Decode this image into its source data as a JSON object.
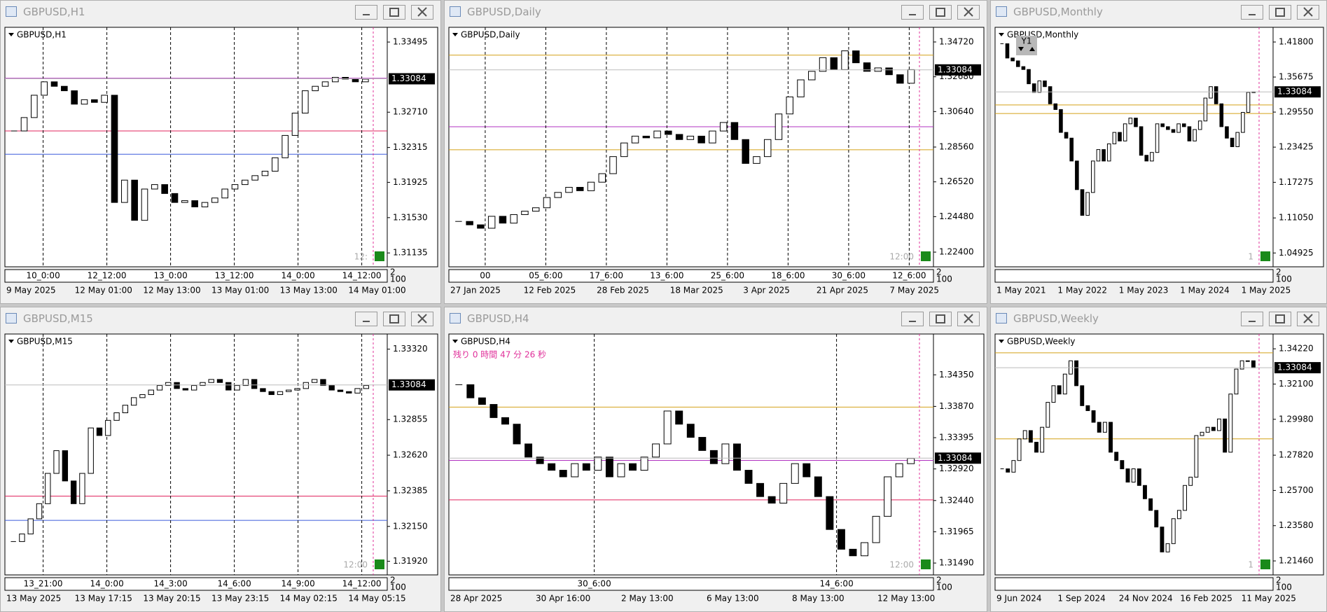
{
  "windows": [
    {
      "title": "GBPUSD,H1",
      "label": "GBPUSD,H1",
      "ylim": [
        1.3098,
        1.3366
      ],
      "yticks": [
        1.33495,
        {
          "value": 1.3271,
          "label": "1.32710"
        },
        1.32315,
        1.31925,
        {
          "value": 1.3153,
          "label": "1.31530"
        },
        1.31135
      ],
      "current_price": 1.33084,
      "axis_labels": [
        "10_0:00",
        "12_12:00",
        "13_0:00",
        "13_12:00",
        "14_0:00",
        "14_12:00"
      ],
      "dates": [
        "9 May 2025",
        "12 May 01:00",
        "12 May 13:00",
        "13 May 01:00",
        "13 May 13:00",
        "14 May 01:00"
      ],
      "corner": [
        "2",
        "100"
      ],
      "note": "12:",
      "levels": [
        {
          "value": 1.325,
          "color": "#e0245e"
        },
        {
          "value": 1.3224,
          "color": "#3b5bdb"
        },
        {
          "value": 1.3309,
          "color": "#b030c0"
        }
      ],
      "closes": [
        1.325,
        1.3265,
        1.329,
        1.3305,
        1.33,
        1.3295,
        1.328,
        1.3285,
        1.3282,
        1.329,
        1.317,
        1.3195,
        1.315,
        1.3185,
        1.319,
        1.318,
        1.317,
        1.3172,
        1.3165,
        1.317,
        1.3175,
        1.3185,
        1.319,
        1.3195,
        1.32,
        1.3205,
        1.322,
        1.3245,
        1.327,
        1.3295,
        1.33,
        1.3305,
        1.331,
        1.3308,
        1.3305,
        1.3308
      ]
    },
    {
      "title": "GBPUSD,Daily",
      "label": "GBPUSD,Daily",
      "ylim": [
        1.2154,
        1.3558
      ],
      "yticks": [
        {
          "value": 1.3472,
          "label": "1.34720"
        },
        {
          "value": 1.3268,
          "label": "1.32680"
        },
        {
          "value": 1.3064,
          "label": "1.30640"
        },
        {
          "value": 1.2856,
          "label": "1.28560"
        },
        {
          "value": 1.2652,
          "label": "1.26520"
        },
        {
          "value": 1.2448,
          "label": "1.24480"
        },
        {
          "value": 1.224,
          "label": "1.22400"
        }
      ],
      "current_price": 1.33084,
      "axis_labels": [
        "00",
        "05_6:00",
        "17_6:00",
        "13_6:00",
        "25_6:00",
        "18_6:00",
        "30_6:00",
        "12_6:00"
      ],
      "dates": [
        "27 Jan 2025",
        "12 Feb 2025",
        "28 Feb 2025",
        "18 Mar 2025",
        "3 Apr 2025",
        "21 Apr 2025",
        "7 May 2025"
      ],
      "corner": [
        "2",
        "100"
      ],
      "note": "12:00",
      "levels": [
        {
          "value": 1.3395,
          "color": "#d4a017"
        },
        {
          "value": 1.284,
          "color": "#d4a017"
        },
        {
          "value": 1.2975,
          "color": "#b030c0"
        }
      ],
      "closes": [
        1.242,
        1.24,
        1.238,
        1.245,
        1.241,
        1.246,
        1.248,
        1.25,
        1.256,
        1.259,
        1.262,
        1.26,
        1.265,
        1.27,
        1.28,
        1.288,
        1.292,
        1.291,
        1.295,
        1.293,
        1.29,
        1.292,
        1.288,
        1.295,
        1.3,
        1.29,
        1.276,
        1.28,
        1.29,
        1.305,
        1.315,
        1.325,
        1.33,
        1.338,
        1.331,
        1.342,
        1.335,
        1.33,
        1.332,
        1.328,
        1.323,
        1.331
      ]
    },
    {
      "title": "GBPUSD,Monthly",
      "label": "GBPUSD,Monthly",
      "ylim": [
        1.0251,
        1.4437
      ],
      "yticks": [
        {
          "value": 1.418,
          "label": "1.41800"
        },
        1.35675,
        {
          "value": 1.2955,
          "label": "1.29550"
        },
        1.23425,
        1.17275,
        {
          "value": 1.1105,
          "label": "1.11050"
        },
        1.04925
      ],
      "current_price": 1.33084,
      "axis_labels": [],
      "dates": [
        "1 May 2021",
        "1 May 2022",
        "1 May 2023",
        "1 May 2024",
        "1 May 2025"
      ],
      "corner": [
        "2",
        "100"
      ],
      "note": "1",
      "button": "Y1",
      "levels": [
        {
          "value": 1.308,
          "color": "#d4a017"
        },
        {
          "value": 1.293,
          "color": "#d4a017"
        }
      ],
      "closes": [
        1.415,
        1.39,
        1.385,
        1.375,
        1.37,
        1.345,
        1.33,
        1.35,
        1.34,
        1.31,
        1.3,
        1.26,
        1.25,
        1.21,
        1.16,
        1.115,
        1.155,
        1.21,
        1.23,
        1.21,
        1.24,
        1.26,
        1.245,
        1.275,
        1.285,
        1.27,
        1.22,
        1.21,
        1.225,
        1.275,
        1.27,
        1.265,
        1.26,
        1.275,
        1.27,
        1.245,
        1.265,
        1.28,
        1.32,
        1.34,
        1.31,
        1.27,
        1.25,
        1.235,
        1.26,
        1.295,
        1.33,
        1.3308
      ]
    },
    {
      "title": "GBPUSD,M15",
      "label": "GBPUSD,M15",
      "ylim": [
        1.3183,
        1.3342
      ],
      "yticks": [
        {
          "value": 1.3332,
          "label": "1.33320"
        },
        1.32855,
        {
          "value": 1.3262,
          "label": "1.32620"
        },
        1.32385,
        {
          "value": 1.3215,
          "label": "1.32150"
        },
        {
          "value": 1.3192,
          "label": "1.31920"
        }
      ],
      "current_price": 1.33084,
      "axis_labels": [
        "13_21:00",
        "14_0:00",
        "14_3:00",
        "14_6:00",
        "14_9:00",
        "14_12:00"
      ],
      "dates": [
        "13 May 2025",
        "13 May 17:15",
        "13 May 20:15",
        "13 May 23:15",
        "14 May 02:15",
        "14 May 05:15"
      ],
      "corner": [
        "2",
        "100"
      ],
      "note": "12:00",
      "levels": [
        {
          "value": 1.3235,
          "color": "#e0245e"
        },
        {
          "value": 1.3219,
          "color": "#3b5bdb"
        }
      ],
      "closes": [
        1.3205,
        1.321,
        1.322,
        1.323,
        1.325,
        1.3265,
        1.3245,
        1.323,
        1.325,
        1.328,
        1.3275,
        1.3285,
        1.329,
        1.3295,
        1.33,
        1.3302,
        1.3305,
        1.3308,
        1.331,
        1.3306,
        1.3305,
        1.3308,
        1.331,
        1.3312,
        1.331,
        1.3305,
        1.3308,
        1.3312,
        1.3306,
        1.3304,
        1.3302,
        1.3304,
        1.3305,
        1.3306,
        1.331,
        1.3312,
        1.3308,
        1.3305,
        1.3304,
        1.3303,
        1.3306,
        1.3308
      ]
    },
    {
      "title": "GBPUSD,H4",
      "label": "GBPUSD,H4",
      "ylim": [
        1.3131,
        1.3497
      ],
      "yticks": [
        {
          "value": 1.3435,
          "label": "1.34350"
        },
        {
          "value": 1.3387,
          "label": "1.33870"
        },
        1.33395,
        {
          "value": 1.3292,
          "label": "1.32920"
        },
        {
          "value": 1.3244,
          "label": "1.32440"
        },
        1.31965,
        {
          "value": 1.3149,
          "label": "1.31490"
        }
      ],
      "current_price": 1.33084,
      "axis_labels": [
        "30_6:00",
        "14_6:00"
      ],
      "dates": [
        "28 Apr 2025",
        "30 Apr 16:00",
        "2 May 13:00",
        "6 May 13:00",
        "8 May 13:00",
        "12 May 13:00"
      ],
      "corner": [
        "2",
        "100"
      ],
      "note": "12:00",
      "countdown": "残り 0 時間 47 分 26 秒",
      "levels": [
        {
          "value": 1.3386,
          "color": "#d4a017"
        },
        {
          "value": 1.3245,
          "color": "#e0245e"
        },
        {
          "value": 1.3305,
          "color": "#b030c0"
        }
      ],
      "closes": [
        1.342,
        1.34,
        1.339,
        1.337,
        1.336,
        1.333,
        1.331,
        1.33,
        1.329,
        1.328,
        1.33,
        1.329,
        1.331,
        1.328,
        1.33,
        1.329,
        1.331,
        1.333,
        1.338,
        1.336,
        1.334,
        1.332,
        1.33,
        1.333,
        1.329,
        1.327,
        1.325,
        1.324,
        1.327,
        1.33,
        1.328,
        1.325,
        1.32,
        1.317,
        1.316,
        1.318,
        1.322,
        1.328,
        1.33,
        1.3308
      ]
    },
    {
      "title": "GBPUSD,Weekly",
      "label": "GBPUSD,Weekly",
      "ylim": [
        1.2062,
        1.3511
      ],
      "yticks": [
        {
          "value": 1.3422,
          "label": "1.34220"
        },
        {
          "value": 1.321,
          "label": "1.32100"
        },
        {
          "value": 1.2998,
          "label": "1.29980"
        },
        {
          "value": 1.2782,
          "label": "1.27820"
        },
        {
          "value": 1.257,
          "label": "1.25700"
        },
        {
          "value": 1.2358,
          "label": "1.23580"
        },
        {
          "value": 1.2146,
          "label": "1.21460"
        }
      ],
      "current_price": 1.33084,
      "axis_labels": [],
      "dates": [
        "9 Jun 2024",
        "1 Sep 2024",
        "24 Nov 2024",
        "16 Feb 2025",
        "11 May 2025"
      ],
      "corner": [
        "2",
        "100"
      ],
      "note": "1",
      "levels": [
        {
          "value": 1.3398,
          "color": "#d4a017"
        },
        {
          "value": 1.288,
          "color": "#d4a017"
        }
      ],
      "closes": [
        1.27,
        1.268,
        1.275,
        1.288,
        1.293,
        1.286,
        1.28,
        1.295,
        1.31,
        1.32,
        1.315,
        1.327,
        1.335,
        1.32,
        1.308,
        1.305,
        1.298,
        1.292,
        1.298,
        1.28,
        1.275,
        1.27,
        1.262,
        1.27,
        1.26,
        1.252,
        1.245,
        1.235,
        1.22,
        1.225,
        1.24,
        1.245,
        1.26,
        1.265,
        1.29,
        1.292,
        1.295,
        1.293,
        1.3,
        1.28,
        1.315,
        1.33,
        1.335,
        1.335,
        1.3308
      ]
    }
  ]
}
